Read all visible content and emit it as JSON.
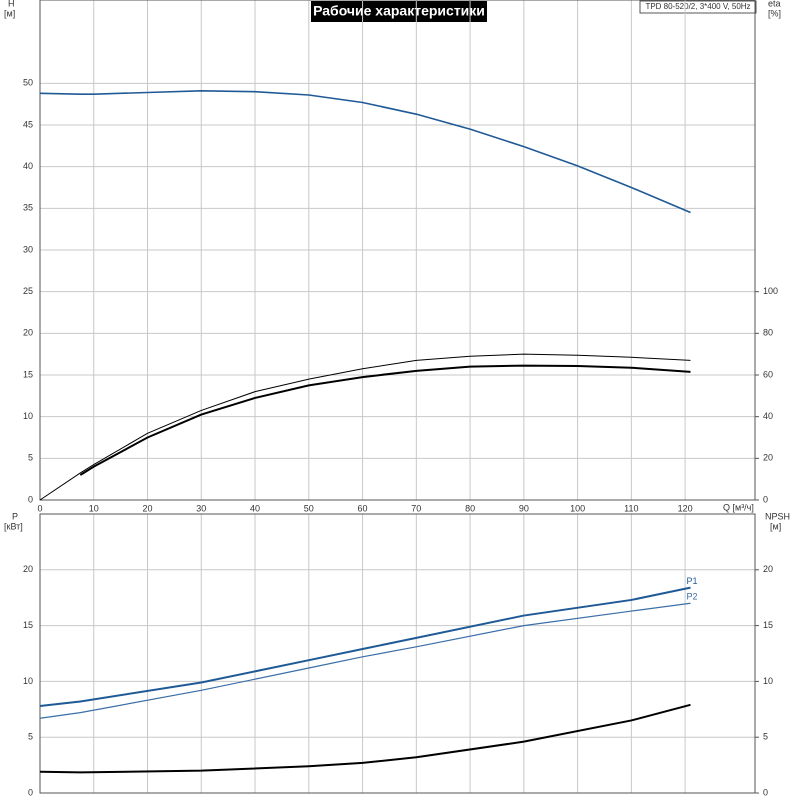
{
  "chart_data": [
    {
      "type": "line",
      "title": "Рабочие характеристики",
      "subtitle": "TPD 80-520/2, 3*400 V, 50Hz",
      "ylabel": "H",
      "ylabel_unit": "[м]",
      "y2label": "eta",
      "y2label_unit": "[%]",
      "xlabel": "Q [м³/ч]",
      "x": [
        0,
        7.5,
        10,
        20,
        30,
        40,
        50,
        60,
        70,
        80,
        90,
        100,
        110,
        121
      ],
      "series": [
        {
          "color": "#1f5a96",
          "line_width": 1.6,
          "values": [
            48.8,
            48.7,
            48.7,
            48.9,
            49.1,
            49.0,
            48.6,
            47.7,
            46.3,
            44.5,
            42.4,
            40.1,
            37.5,
            34.5
          ]
        },
        {
          "color": "#000000",
          "line_width": 1,
          "axis": "y2",
          "values": [
            0,
            13,
            17,
            32,
            43,
            52,
            58,
            63,
            67,
            69,
            70,
            69.5,
            68.5,
            67
          ]
        },
        {
          "color": "#000000",
          "line_width": 2,
          "axis": "y2",
          "values": [
            null,
            12,
            16,
            30,
            41,
            49,
            55,
            59,
            62,
            64,
            64.5,
            64.3,
            63.5,
            61.5
          ]
        }
      ],
      "xlim": [
        0,
        133
      ],
      "xticks": [
        0,
        10,
        20,
        30,
        40,
        50,
        60,
        70,
        80,
        90,
        100,
        110,
        120
      ],
      "ylim": [
        0,
        60
      ],
      "yticks": [
        0,
        5,
        10,
        15,
        20,
        25,
        30,
        35,
        40,
        45,
        50
      ],
      "y2lim": [
        0,
        240
      ],
      "y2ticks": [
        0,
        20,
        40,
        60,
        80,
        100
      ],
      "grid": true
    },
    {
      "type": "line",
      "ylabel": "P",
      "ylabel_unit": "[кВт]",
      "y2label": "NPSH",
      "y2label_unit": "[м]",
      "x": [
        0,
        7.5,
        30,
        50,
        60,
        70,
        90,
        110,
        121
      ],
      "series": [
        {
          "name": "P1",
          "color": "#1f5a96",
          "line_width": 2,
          "values": [
            7.8,
            8.2,
            9.9,
            11.9,
            12.9,
            13.9,
            15.9,
            17.3,
            18.4
          ]
        },
        {
          "name": "P2",
          "color": "#3a6ea8",
          "line_width": 1.2,
          "values": [
            6.7,
            7.2,
            9.2,
            11.2,
            12.2,
            13.1,
            15.0,
            16.3,
            17.0
          ]
        },
        {
          "color": "#000000",
          "line_width": 2,
          "axis": "y2",
          "values": [
            1.9,
            1.85,
            2.0,
            2.4,
            2.7,
            3.2,
            4.6,
            6.5,
            7.9
          ]
        }
      ],
      "xlim": [
        0,
        133
      ],
      "ylim": [
        0,
        25
      ],
      "yticks": [
        0,
        5,
        10,
        15,
        20
      ],
      "y2lim": [
        0,
        25
      ],
      "y2ticks": [
        0,
        5,
        10,
        15,
        20
      ],
      "grid": true
    }
  ]
}
